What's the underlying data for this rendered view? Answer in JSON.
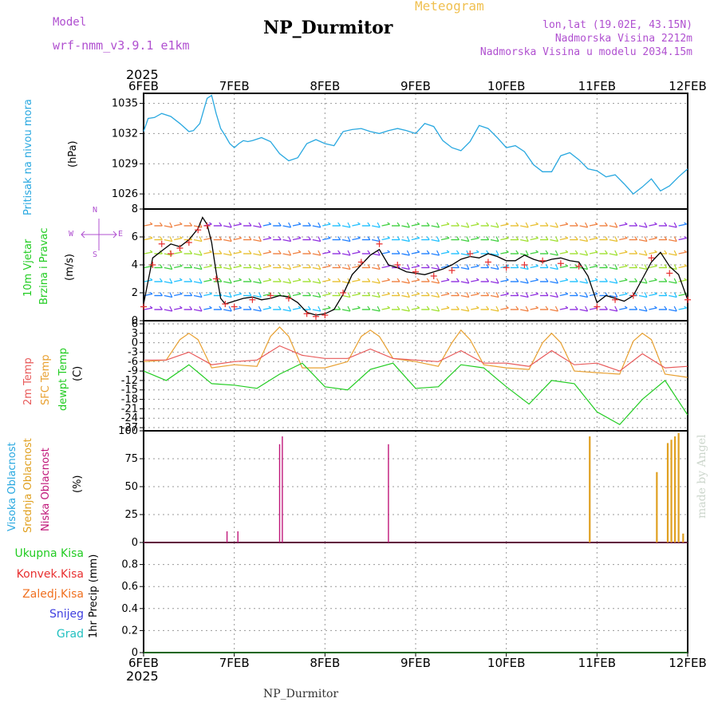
{
  "header": {
    "meteogram_label": "Meteogram",
    "model_label": "Model",
    "model_name": "wrf-nmm_v3.9.1 e1km",
    "station_title": "NP_Durmitor",
    "coords": "lon,lat (19.02E, 43.15N)",
    "elevation": "Nadmorska Visina 2212m",
    "model_elevation": "Nadmorska Visina u modelu 2034.15m",
    "year_top": "2025",
    "year_bottom": "2025",
    "footer_station": "NP_Durmitor",
    "watermark": "made by Angel"
  },
  "colors": {
    "pressure": "#29a8e0",
    "wind_speed": "#000000",
    "wind_gust_marker": "#e83030",
    "temp_2m": "#e85a5a",
    "temp_sfc": "#e8a030",
    "temp_dewpt": "#22cc22",
    "cloud_high": "#29a8e0",
    "cloud_mid": "#e0a020",
    "cloud_low": "#c0187a",
    "header_purple": "#b050d0",
    "header_orange": "#f0c050"
  },
  "panel_labels": {
    "pressure": {
      "name": "Pritisak na nivou mora",
      "unit": "(hPa)"
    },
    "wind": {
      "name1": "10m Vjetar",
      "name2": "Brzina i Pravac",
      "unit": "(m/s)",
      "compass_n": "N",
      "compass_e": "E",
      "compass_w": "W",
      "compass_s": "S"
    },
    "temp": {
      "name1": "2m Temp",
      "name2": "SFC Temp",
      "name3": "dewpt Temp",
      "unit": "(C)"
    },
    "cloud": {
      "name1": "Visoka Oblacnost",
      "name2": "Srednja Oblacnost",
      "name3": "Niska Oblacnost",
      "unit": "(%)"
    },
    "precip": {
      "legend": [
        "Ukupna Kisa",
        "Konvek.Kisa",
        "Zaledj.Kisa",
        "Snijeg",
        "Grad"
      ],
      "unit": "1hr Precip (mm)"
    }
  },
  "chart_data": [
    {
      "type": "line",
      "title": "Pritisak na nivou mora",
      "ylabel": "(hPa)",
      "x_unit": "days since 6FEB 2025",
      "xlim": [
        "6FEB",
        "12FEB"
      ],
      "x_ticks": [
        "6FEB",
        "7FEB",
        "8FEB",
        "9FEB",
        "10FEB",
        "11FEB",
        "12FEB"
      ],
      "ylim": [
        1024.5,
        1036
      ],
      "y_ticks": [
        1026,
        1029,
        1032,
        1035
      ],
      "grid": true,
      "series": [
        {
          "name": "Pritisak na nivou mora",
          "x": [
            0.0,
            0.05,
            0.12,
            0.2,
            0.3,
            0.4,
            0.5,
            0.55,
            0.62,
            0.7,
            0.75,
            0.8,
            0.85,
            0.9,
            0.95,
            1.0,
            1.05,
            1.1,
            1.15,
            1.2,
            1.3,
            1.4,
            1.5,
            1.6,
            1.7,
            1.8,
            1.9,
            2.0,
            2.1,
            2.2,
            2.3,
            2.4,
            2.5,
            2.6,
            2.7,
            2.8,
            2.9,
            3.0,
            3.1,
            3.2,
            3.3,
            3.4,
            3.5,
            3.6,
            3.7,
            3.8,
            3.9,
            4.0,
            4.1,
            4.2,
            4.3,
            4.4,
            4.5,
            4.6,
            4.7,
            4.8,
            4.9,
            5.0,
            5.1,
            5.2,
            5.3,
            5.4,
            5.5,
            5.6,
            5.7,
            5.8,
            5.9,
            6.0
          ],
          "values": [
            1032.2,
            1033.5,
            1033.6,
            1034.0,
            1033.7,
            1033.0,
            1032.2,
            1032.3,
            1033.0,
            1035.5,
            1035.8,
            1034.0,
            1032.5,
            1031.8,
            1031.0,
            1030.6,
            1031.0,
            1031.3,
            1031.2,
            1031.3,
            1031.6,
            1031.2,
            1030.0,
            1029.3,
            1029.6,
            1031.0,
            1031.4,
            1031.0,
            1030.8,
            1032.2,
            1032.4,
            1032.5,
            1032.2,
            1032.0,
            1032.3,
            1032.5,
            1032.3,
            1032.0,
            1033.0,
            1032.7,
            1031.3,
            1030.6,
            1030.3,
            1031.2,
            1032.8,
            1032.5,
            1031.6,
            1030.6,
            1030.8,
            1030.2,
            1028.9,
            1028.2,
            1028.2,
            1029.8,
            1030.1,
            1029.4,
            1028.5,
            1028.3,
            1027.7,
            1027.9,
            1027.0,
            1026.0,
            1026.7,
            1027.5,
            1026.3,
            1026.8,
            1027.7,
            1028.5
          ]
        }
      ]
    },
    {
      "type": "line",
      "title": "10m Vjetar Brzina i Pravac",
      "ylabel": "(m/s)",
      "x_unit": "days since 6FEB 2025",
      "xlim": [
        "6FEB",
        "12FEB"
      ],
      "ylim": [
        0,
        8
      ],
      "y_ticks": [
        0,
        2,
        4,
        6,
        8
      ],
      "grid": true,
      "series": [
        {
          "name": "speed",
          "x": [
            0.0,
            0.1,
            0.2,
            0.3,
            0.4,
            0.5,
            0.6,
            0.65,
            0.7,
            0.75,
            0.8,
            0.85,
            0.9,
            1.0,
            1.1,
            1.2,
            1.3,
            1.4,
            1.5,
            1.6,
            1.7,
            1.8,
            1.9,
            2.0,
            2.1,
            2.2,
            2.3,
            2.4,
            2.5,
            2.6,
            2.7,
            2.8,
            2.9,
            3.0,
            3.1,
            3.2,
            3.3,
            3.4,
            3.5,
            3.6,
            3.7,
            3.8,
            3.9,
            4.0,
            4.1,
            4.2,
            4.3,
            4.4,
            4.5,
            4.6,
            4.7,
            4.8,
            4.9,
            5.0,
            5.1,
            5.2,
            5.3,
            5.4,
            5.5,
            5.6,
            5.7,
            5.8,
            5.9,
            6.0
          ],
          "values": [
            1.2,
            4.5,
            5.0,
            5.5,
            5.3,
            5.8,
            6.6,
            7.4,
            6.9,
            5.6,
            3.5,
            1.6,
            1.2,
            1.4,
            1.6,
            1.7,
            1.5,
            1.6,
            1.8,
            1.7,
            1.3,
            0.6,
            0.4,
            0.5,
            0.8,
            1.9,
            3.3,
            4.0,
            4.7,
            5.1,
            4.0,
            3.8,
            3.5,
            3.4,
            3.3,
            3.5,
            3.7,
            4.0,
            4.4,
            4.6,
            4.5,
            4.8,
            4.6,
            4.3,
            4.3,
            4.7,
            4.4,
            4.2,
            4.4,
            4.5,
            4.3,
            4.2,
            3.2,
            1.3,
            1.8,
            1.6,
            1.4,
            1.8,
            3.0,
            4.2,
            4.9,
            3.9,
            3.3,
            1.5
          ]
        },
        {
          "name": "gust",
          "x": [
            0.0,
            0.1,
            0.2,
            0.3,
            0.4,
            0.5,
            0.6,
            0.7,
            0.8,
            0.9,
            1.0,
            1.2,
            1.4,
            1.6,
            1.8,
            1.9,
            2.0,
            2.2,
            2.4,
            2.6,
            2.8,
            3.0,
            3.2,
            3.4,
            3.6,
            3.8,
            4.0,
            4.2,
            4.4,
            4.6,
            4.8,
            5.0,
            5.2,
            5.4,
            5.6,
            5.8,
            6.0
          ],
          "values": [
            1.0,
            4.0,
            5.5,
            4.8,
            5.2,
            5.6,
            6.5,
            6.8,
            3.0,
            1.2,
            1.0,
            1.5,
            1.8,
            1.6,
            0.5,
            0.3,
            0.4,
            2.0,
            4.2,
            5.5,
            4.0,
            3.5,
            3.2,
            3.6,
            4.8,
            4.2,
            3.8,
            4.0,
            4.3,
            4.1,
            3.9,
            1.0,
            1.5,
            1.8,
            4.5,
            3.4,
            1.5
          ]
        }
      ]
    },
    {
      "type": "line",
      "title": "2m Temp / SFC Temp / dewpt Temp",
      "ylabel": "(C)",
      "x_unit": "days since 6FEB 2025",
      "xlim": [
        "6FEB",
        "12FEB"
      ],
      "ylim": [
        -28,
        7
      ],
      "y_ticks": [
        -27,
        -24,
        -21,
        -18,
        -15,
        -12,
        -9,
        -6,
        -3,
        0,
        3,
        6
      ],
      "grid": true,
      "series": [
        {
          "name": "2m Temp",
          "x": [
            0.0,
            0.25,
            0.5,
            0.75,
            1.0,
            1.25,
            1.5,
            1.75,
            2.0,
            2.25,
            2.5,
            2.75,
            3.0,
            3.25,
            3.5,
            3.75,
            4.0,
            4.25,
            4.5,
            4.75,
            5.0,
            5.25,
            5.5,
            5.75,
            6.0
          ],
          "values": [
            -5.5,
            -5.5,
            -3.0,
            -7.0,
            -6.0,
            -5.5,
            -1.0,
            -4.0,
            -5.0,
            -5.0,
            -2.0,
            -5.0,
            -5.5,
            -6.0,
            -2.5,
            -6.5,
            -6.5,
            -7.5,
            -2.5,
            -7.0,
            -6.5,
            -9.0,
            -3.5,
            -8.0,
            -7.5
          ]
        },
        {
          "name": "SFC Temp",
          "x": [
            0.0,
            0.25,
            0.4,
            0.5,
            0.6,
            0.75,
            1.0,
            1.25,
            1.4,
            1.5,
            1.6,
            1.75,
            2.0,
            2.25,
            2.4,
            2.5,
            2.6,
            2.75,
            3.0,
            3.25,
            3.4,
            3.5,
            3.6,
            3.75,
            4.0,
            4.25,
            4.4,
            4.5,
            4.6,
            4.75,
            5.0,
            5.25,
            5.4,
            5.5,
            5.6,
            5.75,
            6.0
          ],
          "values": [
            -6.0,
            -5.5,
            1.0,
            3.0,
            1.0,
            -8.0,
            -7.0,
            -7.5,
            2.0,
            5.0,
            2.0,
            -8.0,
            -8.0,
            -6.0,
            2.0,
            4.0,
            2.0,
            -5.0,
            -6.0,
            -7.5,
            0.0,
            4.0,
            1.0,
            -7.0,
            -8.0,
            -8.5,
            0.0,
            3.0,
            0.0,
            -9.0,
            -9.5,
            -10.0,
            0.5,
            3.0,
            1.0,
            -10.0,
            -11.0
          ]
        },
        {
          "name": "dewpt Temp",
          "x": [
            0.0,
            0.25,
            0.5,
            0.75,
            1.0,
            1.25,
            1.5,
            1.75,
            2.0,
            2.25,
            2.5,
            2.75,
            3.0,
            3.25,
            3.5,
            3.75,
            4.0,
            4.25,
            4.5,
            4.75,
            5.0,
            5.25,
            5.5,
            5.75,
            6.0
          ],
          "values": [
            -9.0,
            -12.0,
            -7.0,
            -13.0,
            -13.5,
            -14.5,
            -10.0,
            -6.5,
            -14.0,
            -15.0,
            -8.5,
            -6.5,
            -14.5,
            -14.0,
            -7.0,
            -8.0,
            -14.0,
            -19.5,
            -12.0,
            -13.0,
            -22.0,
            -26.0,
            -18.0,
            -12.0,
            -23.0
          ]
        }
      ]
    },
    {
      "type": "bar",
      "title": "Visoka / Srednja / Niska Oblacnost",
      "ylabel": "(%)",
      "x_unit": "days since 6FEB 2025",
      "xlim": [
        "6FEB",
        "12FEB"
      ],
      "ylim": [
        0,
        100
      ],
      "y_ticks": [
        0,
        25,
        50,
        75,
        100
      ],
      "grid": true,
      "series": [
        {
          "name": "Srednja Oblacnost",
          "x": [
            4.92,
            5.66,
            5.78,
            5.82,
            5.86,
            5.9,
            5.95
          ],
          "values": [
            95,
            63,
            89,
            92,
            95,
            98,
            8
          ]
        },
        {
          "name": "Niska Oblacnost",
          "x": [
            0.92,
            1.04,
            1.5,
            1.53,
            2.7
          ],
          "values": [
            10,
            10,
            88,
            95,
            88
          ]
        }
      ]
    },
    {
      "type": "line",
      "title": "1hr Precip",
      "ylabel": "1hr Precip (mm)",
      "x_unit": "days since 6FEB 2025",
      "xlim": [
        "6FEB",
        "12FEB"
      ],
      "ylim": [
        0,
        1.0
      ],
      "y_ticks": [
        0,
        0.2,
        0.4,
        0.6,
        0.8
      ],
      "grid": true,
      "series": [
        {
          "name": "Ukupna Kisa",
          "x": [
            0,
            6
          ],
          "values": [
            0,
            0
          ]
        }
      ]
    }
  ]
}
